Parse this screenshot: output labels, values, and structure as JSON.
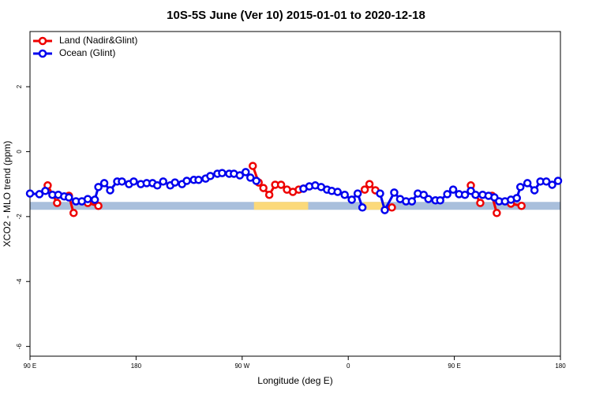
{
  "chart_data": {
    "type": "line",
    "title": "10S-5S June (Ver 10)   2015-01-01 to 2020-12-18",
    "x_label": "Longitude (deg E)",
    "y_label": "XCO2 - MLO trend (ppm)",
    "xlim": [
      90,
      540
    ],
    "ylim": [
      -6.3,
      3.7
    ],
    "xticks": [
      {
        "value": 90,
        "label": "90 E"
      },
      {
        "value": 180,
        "label": "180"
      },
      {
        "value": 270,
        "label": "90 W"
      },
      {
        "value": 360,
        "label": "0"
      },
      {
        "value": 450,
        "label": "90 E"
      },
      {
        "value": 540,
        "label": "180"
      }
    ],
    "yticks": [
      -6,
      -4,
      -2,
      0,
      2
    ],
    "legend": "top-left",
    "mask_band": {
      "y": -1.67,
      "ocean_color": "#a9bfdc",
      "land_color": "#fbd97a",
      "land_ranges": [
        [
          280,
          326
        ],
        [
          373,
          391
        ]
      ]
    },
    "series": [
      {
        "name": "Land (Nadir&Glint)",
        "color": "#ee0000",
        "x": [
          105,
          113,
          null,
          123,
          127,
          null,
          139,
          148,
          null,
          279,
          284,
          288,
          293,
          298,
          303,
          308,
          313,
          318,
          322,
          null,
          374,
          378,
          383,
          null,
          397,
          null,
          464,
          472,
          null,
          482,
          486,
          null,
          498,
          507
        ],
        "values": [
          -1.04,
          -1.58,
          null,
          -1.36,
          -1.89,
          null,
          -1.58,
          -1.67,
          null,
          -0.44,
          -0.95,
          -1.12,
          -1.33,
          -1.02,
          -1.02,
          -1.17,
          -1.24,
          -1.17,
          -1.14,
          null,
          -1.17,
          -1.0,
          -1.19,
          null,
          -1.72,
          null,
          -1.04,
          -1.58,
          null,
          -1.36,
          -1.89,
          null,
          -1.6,
          -1.67
        ]
      },
      {
        "name": "Ocean (Glint)",
        "color": "#0000ee",
        "x": [
          90,
          98,
          103,
          109,
          114,
          119,
          123,
          129,
          134,
          139,
          145,
          148,
          153,
          158,
          164,
          168,
          174,
          178,
          184,
          189,
          194,
          198,
          203,
          209,
          213,
          219,
          223,
          229,
          233,
          239,
          243,
          249,
          253,
          259,
          263,
          268,
          273,
          277,
          282,
          null,
          322,
          327,
          332,
          337,
          342,
          346,
          351,
          357,
          363,
          368,
          372,
          null,
          387,
          391,
          399,
          404,
          409,
          414,
          419,
          424,
          428,
          434,
          438,
          444,
          449,
          454,
          459,
          464,
          468,
          474,
          479,
          484,
          488,
          493,
          498,
          503,
          506,
          512,
          518,
          523,
          528,
          533,
          538
        ],
        "values": [
          -1.29,
          -1.31,
          -1.21,
          -1.33,
          -1.33,
          -1.38,
          -1.41,
          -1.53,
          -1.53,
          -1.46,
          -1.48,
          -1.09,
          -0.97,
          -1.19,
          -0.92,
          -0.92,
          -1.0,
          -0.92,
          -1.0,
          -0.97,
          -0.97,
          -1.04,
          -0.92,
          -1.04,
          -0.95,
          -1.0,
          -0.9,
          -0.87,
          -0.87,
          -0.83,
          -0.75,
          -0.68,
          -0.66,
          -0.68,
          -0.68,
          -0.73,
          -0.63,
          -0.8,
          -0.9,
          null,
          -1.14,
          -1.07,
          -1.04,
          -1.09,
          -1.17,
          -1.21,
          -1.24,
          -1.33,
          -1.48,
          -1.29,
          -1.72,
          null,
          -1.29,
          -1.8,
          -1.26,
          -1.46,
          -1.53,
          -1.53,
          -1.29,
          -1.33,
          -1.46,
          -1.5,
          -1.5,
          -1.31,
          -1.17,
          -1.31,
          -1.33,
          -1.21,
          -1.33,
          -1.33,
          -1.36,
          -1.41,
          -1.53,
          -1.53,
          -1.48,
          -1.43,
          -1.09,
          -0.97,
          -1.19,
          -0.92,
          -0.92,
          -1.02,
          -0.9
        ]
      }
    ]
  }
}
